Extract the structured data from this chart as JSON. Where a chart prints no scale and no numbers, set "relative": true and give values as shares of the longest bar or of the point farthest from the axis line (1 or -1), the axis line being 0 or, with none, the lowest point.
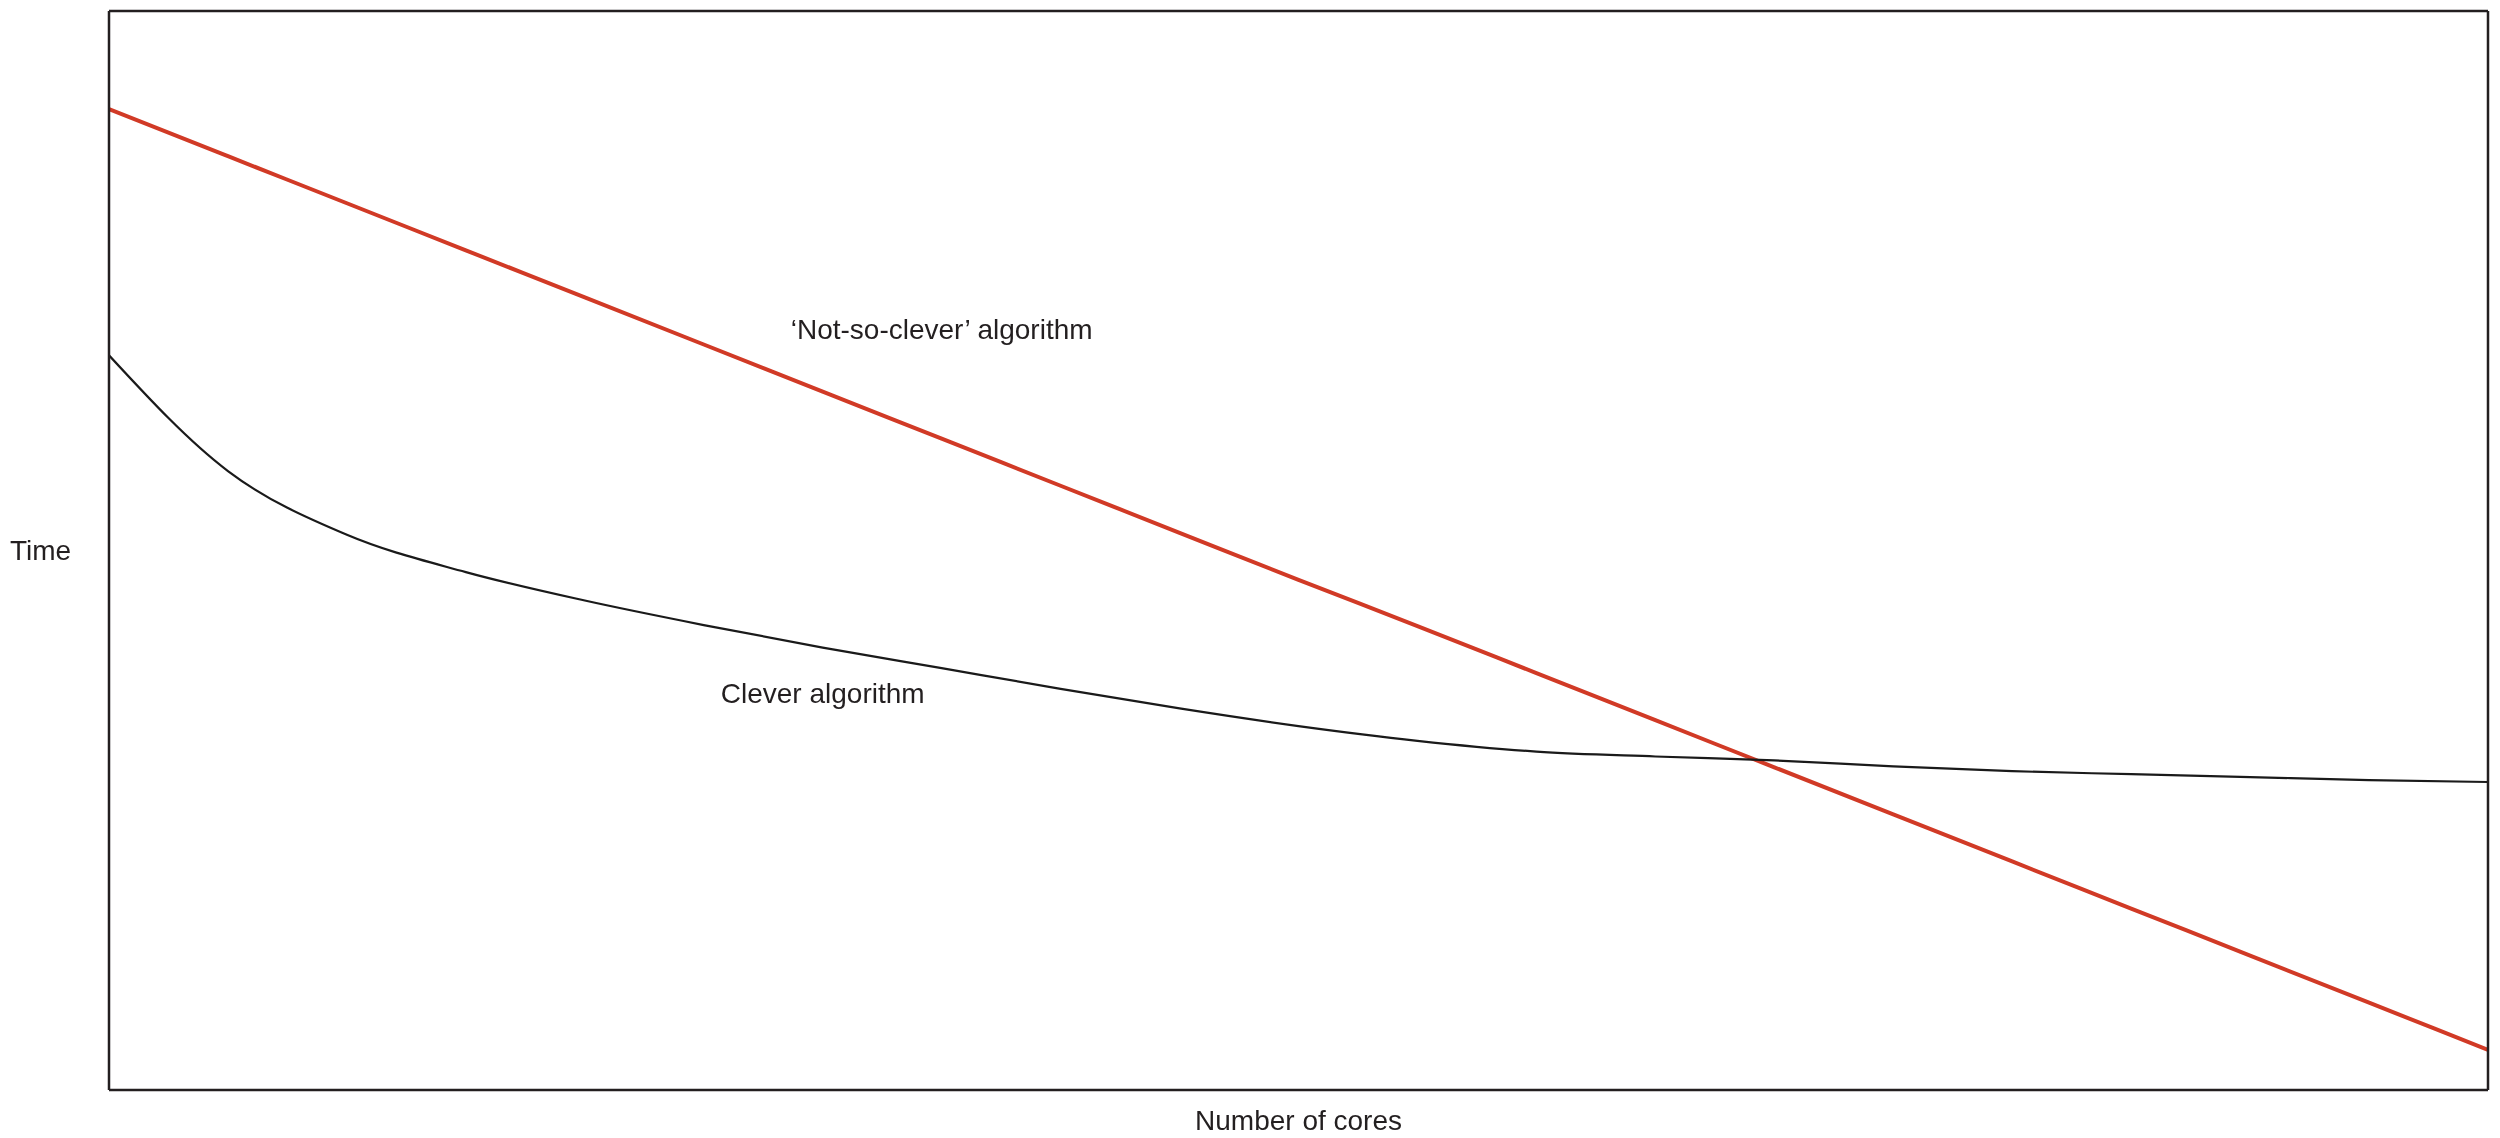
{
  "chart_data": {
    "type": "line",
    "xlabel": "Number of cores",
    "ylabel": "Time",
    "relative": true,
    "marker": "none",
    "line_style": "solid",
    "categories": [
      null,
      null,
      null,
      null,
      null,
      null,
      null,
      null,
      null,
      null,
      null,
      null,
      null,
      null,
      null,
      null,
      null,
      null,
      null,
      null,
      null
    ],
    "series": [
      {
        "name": "‘Not-so-clever’ algorithm",
        "color": "#d13a26",
        "values": [
          1,
          0.952,
          0.904,
          0.856,
          0.808,
          0.76,
          0.712,
          0.664,
          0.616,
          0.568,
          0.52,
          0.473,
          0.425,
          0.377,
          0.329,
          0.281,
          0.233,
          0.185,
          0.137,
          0.089,
          0.041
        ]
      },
      {
        "name": "Clever algorithm",
        "color": "#1a1a1a",
        "values": [
          0.749,
          0.631,
          0.566,
          0.528,
          0.499,
          0.474,
          0.451,
          0.43,
          0.409,
          0.389,
          0.371,
          0.356,
          0.345,
          0.34,
          0.336,
          0.33,
          0.325,
          0.322,
          0.319,
          0.316,
          0.314
        ]
      }
    ]
  }
}
